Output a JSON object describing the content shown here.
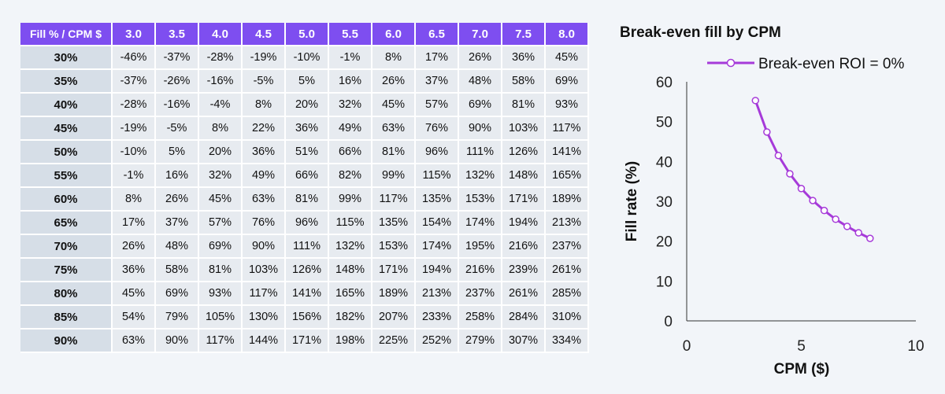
{
  "table": {
    "corner_label": "Fill % / CPM $",
    "columns": [
      "3.0",
      "3.5",
      "4.0",
      "4.5",
      "5.0",
      "5.5",
      "6.0",
      "6.5",
      "7.0",
      "7.5",
      "8.0"
    ],
    "rows": [
      {
        "label": "30%",
        "cells": [
          "-46%",
          "-37%",
          "-28%",
          "-19%",
          "-10%",
          "-1%",
          "8%",
          "17%",
          "26%",
          "36%",
          "45%"
        ]
      },
      {
        "label": "35%",
        "cells": [
          "-37%",
          "-26%",
          "-16%",
          "-5%",
          "5%",
          "16%",
          "26%",
          "37%",
          "48%",
          "58%",
          "69%"
        ]
      },
      {
        "label": "40%",
        "cells": [
          "-28%",
          "-16%",
          "-4%",
          "8%",
          "20%",
          "32%",
          "45%",
          "57%",
          "69%",
          "81%",
          "93%"
        ]
      },
      {
        "label": "45%",
        "cells": [
          "-19%",
          "-5%",
          "8%",
          "22%",
          "36%",
          "49%",
          "63%",
          "76%",
          "90%",
          "103%",
          "117%"
        ]
      },
      {
        "label": "50%",
        "cells": [
          "-10%",
          "5%",
          "20%",
          "36%",
          "51%",
          "66%",
          "81%",
          "96%",
          "111%",
          "126%",
          "141%"
        ]
      },
      {
        "label": "55%",
        "cells": [
          "-1%",
          "16%",
          "32%",
          "49%",
          "66%",
          "82%",
          "99%",
          "115%",
          "132%",
          "148%",
          "165%"
        ]
      },
      {
        "label": "60%",
        "cells": [
          "8%",
          "26%",
          "45%",
          "63%",
          "81%",
          "99%",
          "117%",
          "135%",
          "153%",
          "171%",
          "189%"
        ]
      },
      {
        "label": "65%",
        "cells": [
          "17%",
          "37%",
          "57%",
          "76%",
          "96%",
          "115%",
          "135%",
          "154%",
          "174%",
          "194%",
          "213%"
        ]
      },
      {
        "label": "70%",
        "cells": [
          "26%",
          "48%",
          "69%",
          "90%",
          "111%",
          "132%",
          "153%",
          "174%",
          "195%",
          "216%",
          "237%"
        ]
      },
      {
        "label": "75%",
        "cells": [
          "36%",
          "58%",
          "81%",
          "103%",
          "126%",
          "148%",
          "171%",
          "194%",
          "216%",
          "239%",
          "261%"
        ]
      },
      {
        "label": "80%",
        "cells": [
          "45%",
          "69%",
          "93%",
          "117%",
          "141%",
          "165%",
          "189%",
          "213%",
          "237%",
          "261%",
          "285%"
        ]
      },
      {
        "label": "85%",
        "cells": [
          "54%",
          "79%",
          "105%",
          "130%",
          "156%",
          "182%",
          "207%",
          "233%",
          "258%",
          "284%",
          "310%"
        ]
      },
      {
        "label": "90%",
        "cells": [
          "63%",
          "90%",
          "117%",
          "144%",
          "171%",
          "198%",
          "225%",
          "252%",
          "279%",
          "307%",
          "334%"
        ]
      }
    ]
  },
  "chart_data": {
    "type": "line",
    "title": "Break-even fill by CPM",
    "xlabel": "CPM ($)",
    "ylabel": "Fill rate (%)",
    "xlim": [
      0,
      10
    ],
    "ylim": [
      0,
      60
    ],
    "xticks": [
      0,
      5,
      10
    ],
    "yticks": [
      0,
      10,
      20,
      30,
      40,
      50,
      60
    ],
    "legend_position": "top",
    "grid": false,
    "series": [
      {
        "name": "Break-even ROI = 0%",
        "color": "#a63ad9",
        "x": [
          3.0,
          3.5,
          4.0,
          4.5,
          5.0,
          5.5,
          6.0,
          6.5,
          7.0,
          7.5,
          8.0
        ],
        "y": [
          55.3,
          47.4,
          41.5,
          36.9,
          33.2,
          30.2,
          27.7,
          25.5,
          23.7,
          22.1,
          20.7
        ]
      }
    ]
  },
  "colors": {
    "header_bg": "#7e4ef0",
    "row_label_bg": "#d6dee7",
    "cell_bg": "#e7ebf0",
    "page_bg": "#f2f5f9"
  }
}
